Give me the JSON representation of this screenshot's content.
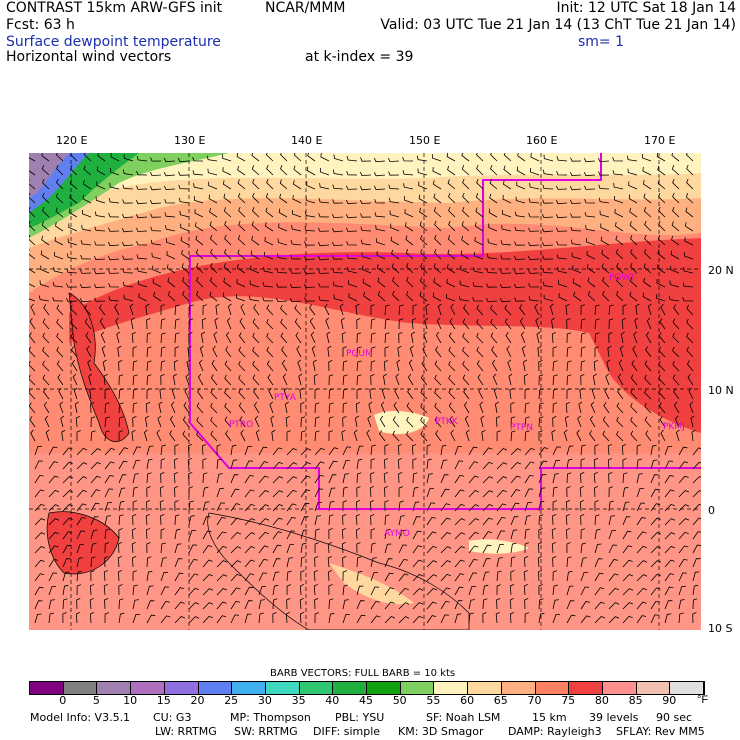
{
  "header": {
    "title": "CONTRAST 15km ARW-GFS init",
    "org": "NCAR/MMM",
    "init": "Init: 12 UTC Sat 18 Jan 14",
    "fcst": "Fcst:    63 h",
    "valid": "Valid: 03 UTC Tue 21 Jan 14 (13 ChT Tue 21 Jan 14)",
    "field1": "Surface dewpoint temperature",
    "smoothing": "sm= 1",
    "field2": "Horizontal wind vectors",
    "level": "at k-index =   39"
  },
  "axes": {
    "lon_labels": [
      "120 E",
      "130 E",
      "140 E",
      "150 E",
      "160 E",
      "170 E"
    ],
    "lat_labels": [
      "20 N",
      "10 N",
      "0",
      "10 S"
    ]
  },
  "stations": [
    "PGUM",
    "PTYA",
    "PTRO",
    "PTKK",
    "PTPN",
    "PKMJ",
    "AYMO",
    "PGWT"
  ],
  "legend": {
    "barb_text": "BARB VECTORS:  FULL BARB = 10 kts",
    "unit": "°F",
    "ticks": [
      "0",
      "5",
      "10",
      "15",
      "20",
      "25",
      "30",
      "35",
      "40",
      "45",
      "50",
      "55",
      "60",
      "65",
      "70",
      "75",
      "80",
      "85",
      "90"
    ],
    "colors": [
      "#800080",
      "#808080",
      "#a080b0",
      "#b070c0",
      "#9070e0",
      "#6080f0",
      "#40b0f0",
      "#40d8c0",
      "#30c870",
      "#20b040",
      "#10a010",
      "#80d060",
      "#fff4c0",
      "#ffd8a0",
      "#ffb080",
      "#ff8060",
      "#f04040",
      "#ff9090",
      "#f0c0b0",
      "#e0e0e0"
    ]
  },
  "footer": {
    "line1": [
      "Model Info: V3.5.1",
      "CU: G3",
      "MP: Thompson",
      "PBL: YSU",
      "SF: Noah LSM",
      "15 km",
      "39 levels",
      "90 sec"
    ],
    "line2": [
      "LW: RRTMG",
      "SW: RRTMG",
      "DIFF: simple",
      "KM: 3D Smagor",
      "DAMP: Rayleigh3",
      "SFLAY: Rev MM5"
    ]
  }
}
